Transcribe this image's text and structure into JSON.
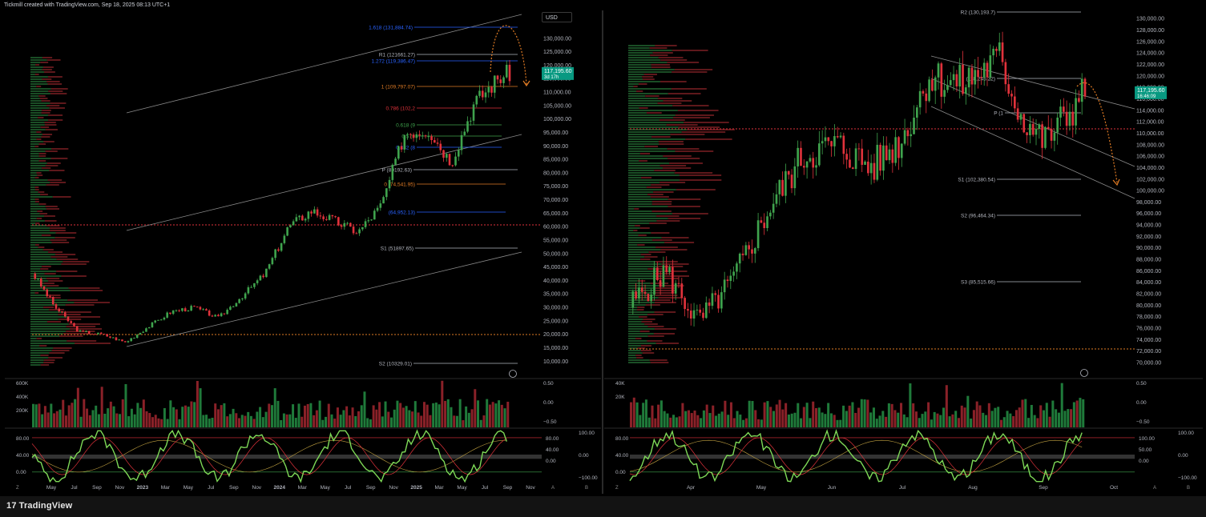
{
  "header": {
    "caption": "Tickmill created with TradingView.com, Sep 18, 2025 08:13 UTC+1"
  },
  "footer": {
    "brand": "TradingView"
  },
  "colors": {
    "up": "#3fa34d",
    "down": "#e0323b",
    "bg": "#000000",
    "grid": "#1a1a1a",
    "fib_orange": "#e07b24",
    "fib_blue": "#2962ff",
    "tag_green": "#089981"
  },
  "left": {
    "currency": "USD",
    "last_price": "117,195.60",
    "last_sub": "3d 17h",
    "price_ticks": [
      "130,000.00",
      "125,000.00",
      "120,000.00",
      "115,000.00",
      "110,000.00",
      "105,000.00",
      "100,000.00",
      "95,000.00",
      "90,000.00",
      "85,000.00",
      "80,000.00",
      "75,000.00",
      "70,000.00",
      "65,000.00",
      "60,000.00",
      "55,000.00",
      "50,000.00",
      "45,000.00",
      "40,000.00",
      "35,000.00",
      "30,000.00",
      "25,000.00",
      "20,000.00",
      "15,000.00",
      "10,000.00"
    ],
    "time_ticks": [
      "May",
      "Jul",
      "Sep",
      "Nov",
      "2023",
      "Mar",
      "May",
      "Jul",
      "Sep",
      "Nov",
      "2024",
      "Mar",
      "May",
      "Jul",
      "Sep",
      "Nov",
      "2025",
      "Mar",
      "May",
      "Jul",
      "Sep",
      "Nov"
    ],
    "volume_ticks": [
      "600K",
      "400K",
      "200K"
    ],
    "volume_right_ticks": [
      "0.50",
      "0.00",
      "−0.50"
    ],
    "osc_ticks": [
      "80.00",
      "40.00",
      "0.00"
    ],
    "osc_right_ticks": [
      "100.00",
      "0.00",
      "−100.00"
    ],
    "osc_right_inner": [
      "80.00",
      "40.00",
      "0.00"
    ],
    "levels": [
      {
        "label": "1.618 (131,884.74)",
        "color": "#2962ff"
      },
      {
        "label": "R1 (121661.27)",
        "color": "#b2b5be"
      },
      {
        "label": "1.272 (119,386.47)",
        "color": "#2962ff"
      },
      {
        "label": "1 (109,797.07)",
        "color": "#e07b24"
      },
      {
        "label": "0.786 (102,2",
        "color": "#e0323b"
      },
      {
        "label": "0.618 (9",
        "color": "#3fa34d"
      },
      {
        "label": "0.5 (9",
        "color": "#3fa34d"
      },
      {
        "label": "0.382 (8",
        "color": "#2962ff"
      },
      {
        "label": "P (80192.63)",
        "color": "#b2b5be"
      },
      {
        "label": "0 (74,541.95)",
        "color": "#e07b24"
      },
      {
        "label": "(64,952.13)",
        "color": "#2962ff"
      },
      {
        "label": "S1 (51897.65)",
        "color": "#b2b5be"
      },
      {
        "label": "S2 (10329.01)",
        "color": "#b2b5be"
      }
    ]
  },
  "right": {
    "last_price": "117,195.60",
    "last_sub": "16:46:09",
    "price_ticks": [
      "130,000.00",
      "128,000.00",
      "126,000.00",
      "124,000.00",
      "122,000.00",
      "120,000.00",
      "118,000.00",
      "116,000.00",
      "114,000.00",
      "112,000.00",
      "110,000.00",
      "108,000.00",
      "106,000.00",
      "104,000.00",
      "102,000.00",
      "100,000.00",
      "98,000.00",
      "96,000.00",
      "94,000.00",
      "92,000.00",
      "90,000.00",
      "88,000.00",
      "86,000.00",
      "84,000.00",
      "82,000.00",
      "80,000.00",
      "78,000.00",
      "76,000.00",
      "74,000.00",
      "72,000.00",
      "70,000.00"
    ],
    "time_ticks": [
      "Apr",
      "May",
      "Jun",
      "Jul",
      "Aug",
      "Sep",
      "Oct"
    ],
    "volume_ticks": [
      "40K",
      "20K"
    ],
    "volume_right_ticks": [
      "0.50",
      "0.00",
      "−0.50"
    ],
    "osc_ticks": [
      "80.00",
      "40.00",
      "0.00"
    ],
    "osc_right_ticks": [
      "100.00",
      "0.00",
      "−100.00"
    ],
    "osc_right_inner": [
      "100.00",
      "50.00",
      "0.00"
    ],
    "levels": [
      {
        "label": "R2 (130,193.7)",
        "color": "#b2b5be"
      },
      {
        "label": "(118,245.22)",
        "color": "#b2b5be"
      },
      {
        "label": "P (1",
        "color": "#b2b5be"
      },
      {
        "label": "S1 (102,380.54)",
        "color": "#b2b5be"
      },
      {
        "label": "S2 (96,464.34)",
        "color": "#b2b5be"
      },
      {
        "label": "S3 (85,515.66)",
        "color": "#b2b5be"
      }
    ]
  },
  "chart_data": [
    {
      "type": "line",
      "title": "",
      "xlabel": "",
      "ylabel": "",
      "ylim": [
        8000,
        135000
      ],
      "x": [
        "2022-04",
        "2022-06",
        "2022-08",
        "2022-10",
        "2022-12",
        "2023-02",
        "2023-04",
        "2023-06",
        "2023-08",
        "2023-10",
        "2023-12",
        "2024-02",
        "2024-04",
        "2024-06",
        "2024-08",
        "2024-10",
        "2024-12",
        "2025-02",
        "2025-04",
        "2025-06",
        "2025-08",
        "2025-09"
      ],
      "series": [
        {
          "values": [
            43000,
            30000,
            21000,
            20000,
            17000,
            23000,
            28500,
            30000,
            26000,
            34000,
            42500,
            60000,
            66000,
            62000,
            58000,
            68000,
            95000,
            96000,
            84000,
            106000,
            115000,
            117195.6
          ]
        }
      ]
    },
    {
      "type": "line",
      "title": "",
      "xlabel": "",
      "ylabel": "",
      "ylim": [
        70000,
        131000
      ],
      "x": [
        "2025-03-10",
        "2025-03-25",
        "2025-04-08",
        "2025-04-22",
        "2025-05-08",
        "2025-05-22",
        "2025-06-05",
        "2025-06-20",
        "2025-07-03",
        "2025-07-14",
        "2025-07-28",
        "2025-08-13",
        "2025-08-22",
        "2025-09-01",
        "2025-09-10",
        "2025-09-18"
      ],
      "series": [
        {
          "values": [
            80000,
            86000,
            77000,
            84000,
            97000,
            106000,
            108000,
            104000,
            109000,
            120000,
            118500,
            123000,
            113000,
            108500,
            113000,
            117195.6
          ]
        }
      ]
    }
  ]
}
